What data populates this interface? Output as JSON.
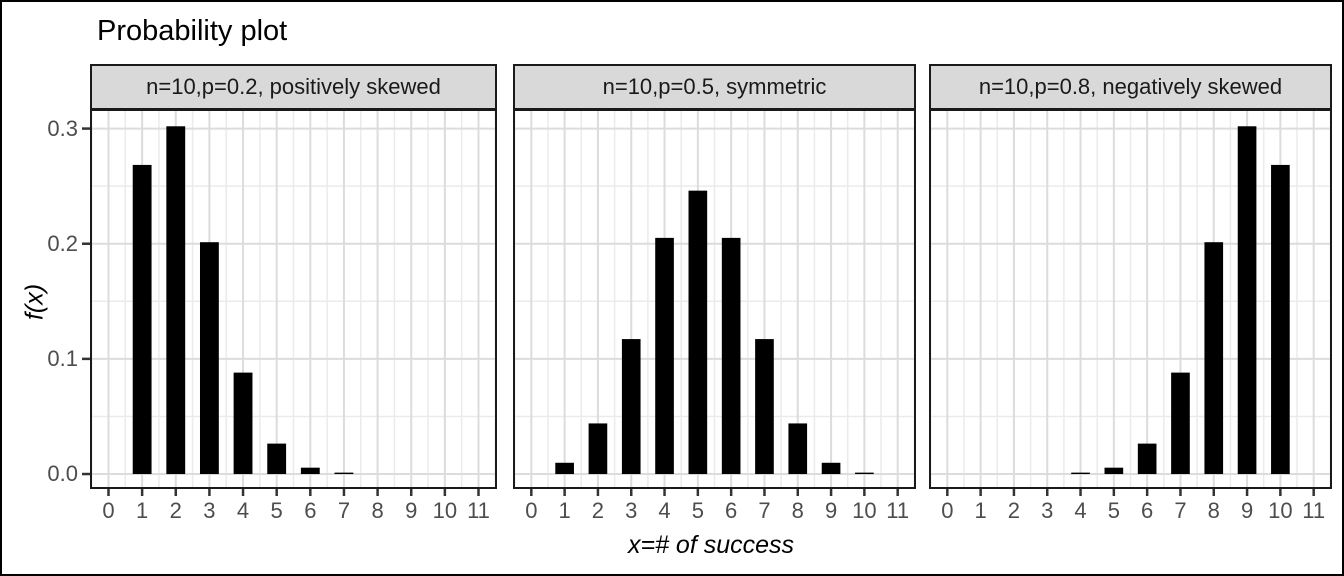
{
  "chart_data": {
    "type": "bar",
    "title": "Probability plot",
    "xlabel": "x=# of success",
    "ylabel": "f(x)",
    "x_ticks": [
      0,
      1,
      2,
      3,
      4,
      5,
      6,
      7,
      8,
      9,
      10,
      11
    ],
    "y_ticks": [
      "0.0",
      "0.1",
      "0.2",
      "0.3"
    ],
    "y_tick_values": [
      0.0,
      0.1,
      0.2,
      0.3
    ],
    "xlim": [
      -0.55,
      11.55
    ],
    "ylim": [
      -0.013,
      0.317
    ],
    "grid": true,
    "legend": "none",
    "facets": [
      {
        "label": "n=10,p=0.2, positively skewed",
        "n": 10,
        "p": 0.2,
        "x": [
          1,
          2,
          3,
          4,
          5,
          6,
          7,
          8,
          9,
          10
        ],
        "values": [
          0.26844,
          0.30199,
          0.20133,
          0.08808,
          0.02642,
          0.00551,
          0.00079,
          7.37e-05,
          4.1e-06,
          1e-07
        ]
      },
      {
        "label": "n=10,p=0.5, symmetric",
        "n": 10,
        "p": 0.5,
        "x": [
          1,
          2,
          3,
          4,
          5,
          6,
          7,
          8,
          9,
          10
        ],
        "values": [
          0.00977,
          0.04395,
          0.11719,
          0.20508,
          0.24609,
          0.20508,
          0.11719,
          0.04395,
          0.00977,
          0.00098
        ]
      },
      {
        "label": "n=10,p=0.8, negatively skewed",
        "n": 10,
        "p": 0.8,
        "x": [
          1,
          2,
          3,
          4,
          5,
          6,
          7,
          8,
          9,
          10
        ],
        "values": [
          1e-07,
          4.1e-06,
          7.37e-05,
          0.00079,
          0.00551,
          0.02642,
          0.08808,
          0.20133,
          0.30199,
          0.26844
        ]
      }
    ],
    "style": {
      "bar_color": "#000000",
      "strip_bg": "#d9d9d9",
      "panel_border": "#1a1a1a",
      "grid_major": "#dcdcdc",
      "grid_minor": "#ebebeb",
      "tick_mark": "#333333",
      "tick_text": "#4d4d4d",
      "title_text": "#000000"
    }
  }
}
